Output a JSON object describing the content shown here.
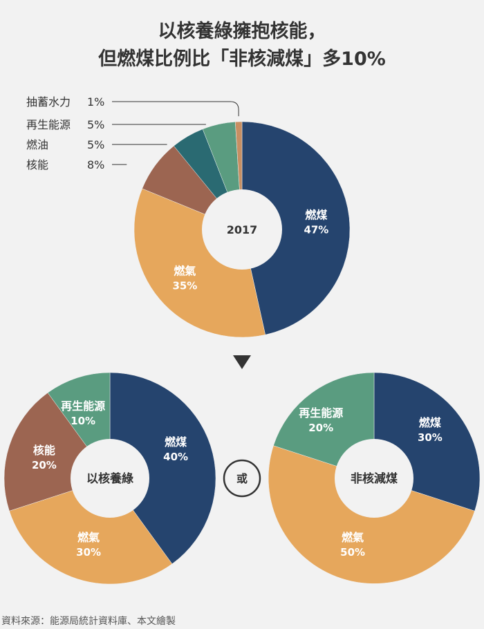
{
  "title_line1": "以核養綠擁抱核能，",
  "title_line2": "但燃煤比例比「非核減煤」多10%",
  "source": "資料來源：能源局統計資料庫、本文繪製",
  "or_label": "或",
  "colors": {
    "coal": "#25446e",
    "gas": "#e6a75c",
    "nuclear": "#9c6551",
    "oil": "#2a6a72",
    "renewable": "#5a9c80",
    "pumped": "#c78f63"
  },
  "chart_data": [
    {
      "type": "pie",
      "center_label": "2017",
      "slices": [
        {
          "key": "coal",
          "name": "燃煤",
          "value": 47,
          "value_text": "47%",
          "color": "#25446e"
        },
        {
          "key": "gas",
          "name": "燃氣",
          "value": 35,
          "value_text": "35%",
          "color": "#e6a75c"
        },
        {
          "key": "nuclear",
          "name": "核能",
          "value": 8,
          "value_text": "8%",
          "color": "#9c6551"
        },
        {
          "key": "oil",
          "name": "燃油",
          "value": 5,
          "value_text": "5%",
          "color": "#2a6a72"
        },
        {
          "key": "renewable",
          "name": "再生能源",
          "value": 5,
          "value_text": "5%",
          "color": "#5a9c80"
        },
        {
          "key": "pumped",
          "name": "抽蓄水力",
          "value": 1,
          "value_text": "1%",
          "color": "#c78f63"
        }
      ]
    },
    {
      "type": "pie",
      "center_label": "以核養綠",
      "slices": [
        {
          "key": "coal",
          "name": "燃煤",
          "value": 40,
          "value_text": "40%",
          "color": "#25446e"
        },
        {
          "key": "gas",
          "name": "燃氣",
          "value": 30,
          "value_text": "30%",
          "color": "#e6a75c"
        },
        {
          "key": "nuclear",
          "name": "核能",
          "value": 20,
          "value_text": "20%",
          "color": "#9c6551"
        },
        {
          "key": "renewable",
          "name": "再生能源",
          "value": 10,
          "value_text": "10%",
          "color": "#5a9c80"
        }
      ]
    },
    {
      "type": "pie",
      "center_label": "非核減煤",
      "slices": [
        {
          "key": "coal",
          "name": "燃煤",
          "value": 30,
          "value_text": "30%",
          "color": "#25446e"
        },
        {
          "key": "gas",
          "name": "燃氣",
          "value": 50,
          "value_text": "50%",
          "color": "#e6a75c"
        },
        {
          "key": "renewable",
          "name": "再生能源",
          "value": 20,
          "value_text": "20%",
          "color": "#5a9c80"
        }
      ]
    }
  ]
}
